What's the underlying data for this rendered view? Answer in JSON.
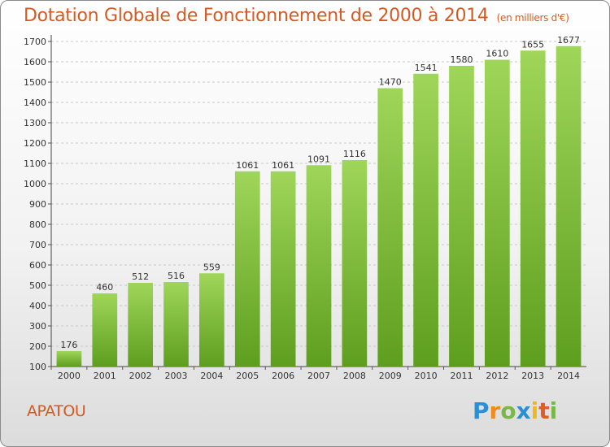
{
  "title": "Dotation Globale de Fonctionnement de 2000 à 2014",
  "subtitle": "(en milliers d'€)",
  "commune": "APATOU",
  "logo": "Proxiti",
  "colors": {
    "title": "#d35a22",
    "bar_top": "#9fd65a",
    "bar_bottom": "#5e9e1e",
    "grid": "#c8c8c8"
  },
  "chart_data": {
    "type": "bar",
    "title": "Dotation Globale de Fonctionnement de 2000 à 2014",
    "subtitle": "(en milliers d'€)",
    "categories": [
      "2000",
      "2001",
      "2002",
      "2003",
      "2004",
      "2005",
      "2006",
      "2007",
      "2008",
      "2009",
      "2010",
      "2011",
      "2012",
      "2013",
      "2014"
    ],
    "values": [
      176,
      460,
      512,
      516,
      559,
      1061,
      1061,
      1091,
      1116,
      1470,
      1541,
      1580,
      1610,
      1655,
      1677
    ],
    "ylim": [
      100,
      1700
    ],
    "yticks": [
      100,
      200,
      300,
      400,
      500,
      600,
      700,
      800,
      900,
      1000,
      1100,
      1200,
      1300,
      1400,
      1500,
      1600,
      1700
    ],
    "grid": true,
    "data_labels": true
  }
}
